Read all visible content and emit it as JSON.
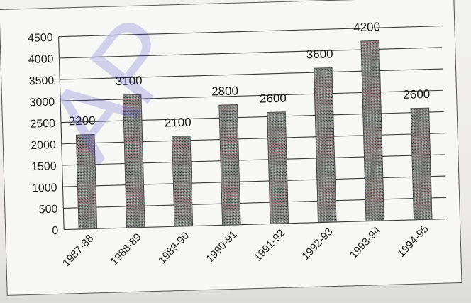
{
  "chart_data": {
    "type": "bar",
    "categories": [
      "1987-88",
      "1988-89",
      "1989-90",
      "1990-91",
      "1991-92",
      "1992-93",
      "1993-94",
      "1994-95"
    ],
    "values": [
      2200,
      3100,
      2100,
      2800,
      2600,
      3600,
      4200,
      2600
    ],
    "value_labels": [
      "2200",
      "3100",
      "2100",
      "2800",
      "2600",
      "3600",
      "4200",
      "2600"
    ],
    "y_ticks": [
      "0",
      "500",
      "1000",
      "1500",
      "2000",
      "2500",
      "3000",
      "3500",
      "4000",
      "4500"
    ],
    "ylim": [
      0,
      4500
    ],
    "grid": true,
    "title": "",
    "xlabel": "",
    "ylabel": ""
  },
  "watermark": "AP",
  "colors": {
    "bar": "#6e6e6e",
    "grid": "#3a3a3a",
    "watermark": "#5046c8"
  }
}
